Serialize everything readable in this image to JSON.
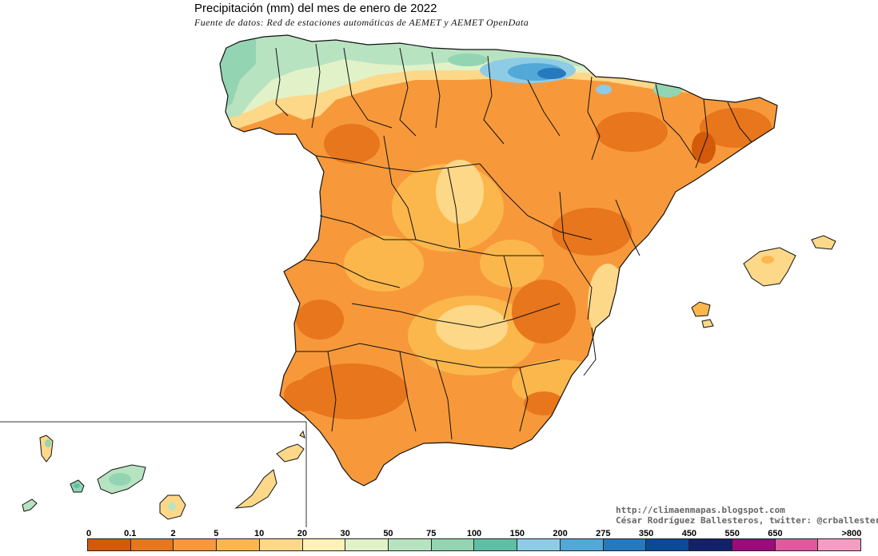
{
  "title": "Precipitación (mm) del mes de enero  de 2022",
  "subtitle": "Fuente de datos: Red de estaciones automáticas de AEMET y AEMET OpenData",
  "credits": {
    "url": "http://climaenmapas.blogspot.com",
    "author": "César Rodríguez Ballesteros, twitter: @crballesteros"
  },
  "legend": {
    "labels": [
      "0",
      "0.1",
      "2",
      "5",
      "10",
      "20",
      "30",
      "50",
      "75",
      "100",
      "150",
      "200",
      "275",
      "350",
      "450",
      "550",
      "650",
      ">800"
    ],
    "colors": [
      "#d35a0a",
      "#e8761c",
      "#f7993a",
      "#fbb74c",
      "#fdd889",
      "#fff1b8",
      "#e1f2c9",
      "#b7e3c1",
      "#93d4b3",
      "#5fbfa5",
      "#8ecce6",
      "#52a8d7",
      "#2679bd",
      "#0d4a96",
      "#14206a",
      "#9c0a7b",
      "#e2589f",
      "#f59cc4"
    ]
  },
  "map_colors": {
    "dry_deep": "#d35a0a",
    "dry": "#e8761c",
    "orange": "#f7993a",
    "light_orange": "#fbb74c",
    "pale": "#fdd889",
    "cream": "#fff1b8",
    "green_pale": "#e1f2c9",
    "green": "#b7e3c1",
    "teal": "#93d4b3",
    "teal_dark": "#5fbfa5",
    "blue_light": "#8ecce6",
    "blue": "#52a8d7",
    "blue_dark": "#2679bd",
    "borders": "#111111"
  }
}
